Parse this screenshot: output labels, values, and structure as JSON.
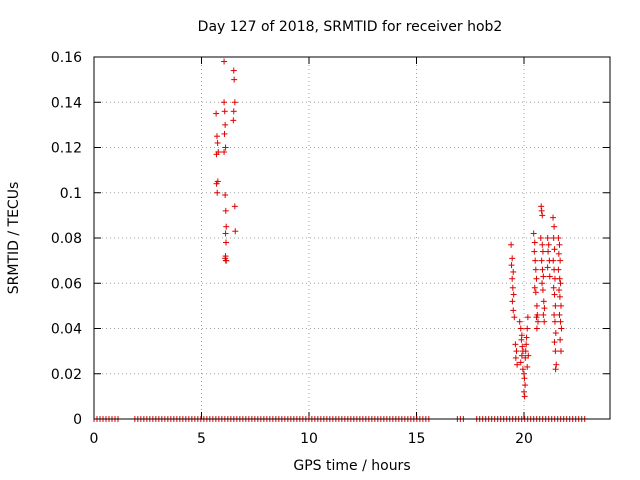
{
  "chart_data": {
    "type": "scatter",
    "title": "Day 127 of 2018, SRMTID for receiver hob2",
    "xlabel": "GPS time / hours",
    "ylabel": "SRMTID / TECUs",
    "xlim": [
      0,
      24
    ],
    "ylim": [
      0,
      0.16
    ],
    "xticks": [
      0,
      5,
      10,
      15,
      20
    ],
    "xtick_labels": [
      "0",
      "5",
      "10",
      "15",
      "20"
    ],
    "yticks": [
      0,
      0.02,
      0.04,
      0.06,
      0.08,
      0.1,
      0.12,
      0.14,
      0.16
    ],
    "ytick_labels": [
      "0",
      "0.02",
      "0.04",
      "0.06",
      "0.08",
      "0.1",
      "0.12",
      "0.14",
      "0.16"
    ],
    "grid": true,
    "marker": "plus",
    "color": "#dd0000",
    "zero_band_segments": [
      [
        0,
        1.2
      ],
      [
        1.9,
        15.7
      ],
      [
        16.9,
        17.2
      ],
      [
        17.8,
        22.9
      ]
    ],
    "series": [
      {
        "name": "SRMTID",
        "points": [
          [
            5.7,
            0.117
          ],
          [
            5.72,
            0.125
          ],
          [
            5.75,
            0.122
          ],
          [
            5.78,
            0.118
          ],
          [
            5.7,
            0.104
          ],
          [
            5.73,
            0.1
          ],
          [
            5.76,
            0.105
          ],
          [
            5.68,
            0.135
          ],
          [
            6.05,
            0.158
          ],
          [
            6.05,
            0.14
          ],
          [
            6.08,
            0.136
          ],
          [
            6.1,
            0.13
          ],
          [
            6.07,
            0.126
          ],
          [
            6.12,
            0.12
          ],
          [
            6.05,
            0.118
          ],
          [
            6.1,
            0.099
          ],
          [
            6.13,
            0.092
          ],
          [
            6.15,
            0.085
          ],
          [
            6.12,
            0.082
          ],
          [
            6.14,
            0.078
          ],
          [
            6.1,
            0.071
          ],
          [
            6.13,
            0.07
          ],
          [
            6.15,
            0.07
          ],
          [
            6.12,
            0.072
          ],
          [
            6.5,
            0.154
          ],
          [
            6.52,
            0.15
          ],
          [
            6.55,
            0.14
          ],
          [
            6.5,
            0.136
          ],
          [
            6.48,
            0.132
          ],
          [
            6.55,
            0.094
          ],
          [
            6.57,
            0.083
          ],
          [
            19.4,
            0.077
          ],
          [
            19.45,
            0.071
          ],
          [
            19.42,
            0.068
          ],
          [
            19.5,
            0.065
          ],
          [
            19.45,
            0.062
          ],
          [
            19.48,
            0.058
          ],
          [
            19.52,
            0.055
          ],
          [
            19.46,
            0.052
          ],
          [
            19.5,
            0.048
          ],
          [
            19.55,
            0.045
          ],
          [
            19.6,
            0.033
          ],
          [
            19.65,
            0.03
          ],
          [
            19.62,
            0.027
          ],
          [
            19.68,
            0.024
          ],
          [
            19.8,
            0.043
          ],
          [
            19.85,
            0.04
          ],
          [
            19.9,
            0.037
          ],
          [
            19.88,
            0.035
          ],
          [
            19.92,
            0.032
          ],
          [
            19.95,
            0.03
          ],
          [
            19.9,
            0.028
          ],
          [
            19.85,
            0.025
          ],
          [
            19.95,
            0.022
          ],
          [
            20.0,
            0.02
          ],
          [
            20.02,
            0.018
          ],
          [
            20.05,
            0.015
          ],
          [
            20.0,
            0.012
          ],
          [
            20.03,
            0.01
          ],
          [
            20.06,
            0.027
          ],
          [
            20.08,
            0.03
          ],
          [
            20.1,
            0.033
          ],
          [
            20.12,
            0.036
          ],
          [
            20.15,
            0.04
          ],
          [
            20.18,
            0.045
          ],
          [
            20.2,
            0.028
          ],
          [
            20.15,
            0.023
          ],
          [
            20.45,
            0.082
          ],
          [
            20.5,
            0.078
          ],
          [
            20.48,
            0.074
          ],
          [
            20.52,
            0.07
          ],
          [
            20.55,
            0.066
          ],
          [
            20.58,
            0.062
          ],
          [
            20.5,
            0.058
          ],
          [
            20.55,
            0.056
          ],
          [
            20.6,
            0.05
          ],
          [
            20.62,
            0.046
          ],
          [
            20.65,
            0.043
          ],
          [
            20.6,
            0.04
          ],
          [
            20.58,
            0.045
          ],
          [
            20.8,
            0.094
          ],
          [
            20.82,
            0.092
          ],
          [
            20.85,
            0.09
          ],
          [
            20.78,
            0.08
          ],
          [
            20.85,
            0.077
          ],
          [
            20.88,
            0.074
          ],
          [
            20.82,
            0.07
          ],
          [
            20.86,
            0.066
          ],
          [
            20.9,
            0.063
          ],
          [
            20.84,
            0.06
          ],
          [
            20.88,
            0.057
          ],
          [
            20.92,
            0.052
          ],
          [
            20.95,
            0.049
          ],
          [
            20.9,
            0.046
          ],
          [
            20.94,
            0.043
          ],
          [
            21.1,
            0.08
          ],
          [
            21.15,
            0.077
          ],
          [
            21.12,
            0.074
          ],
          [
            21.18,
            0.07
          ],
          [
            21.1,
            0.067
          ],
          [
            21.2,
            0.063
          ],
          [
            21.35,
            0.089
          ],
          [
            21.4,
            0.085
          ],
          [
            21.38,
            0.08
          ],
          [
            21.42,
            0.075
          ],
          [
            21.36,
            0.07
          ],
          [
            21.4,
            0.066
          ],
          [
            21.44,
            0.062
          ],
          [
            21.38,
            0.058
          ],
          [
            21.42,
            0.055
          ],
          [
            21.46,
            0.05
          ],
          [
            21.4,
            0.046
          ],
          [
            21.44,
            0.043
          ],
          [
            21.48,
            0.038
          ],
          [
            21.42,
            0.034
          ],
          [
            21.46,
            0.03
          ],
          [
            21.5,
            0.024
          ],
          [
            21.47,
            0.022
          ],
          [
            21.6,
            0.08
          ],
          [
            21.65,
            0.077
          ],
          [
            21.62,
            0.073
          ],
          [
            21.68,
            0.07
          ],
          [
            21.6,
            0.066
          ],
          [
            21.66,
            0.062
          ],
          [
            21.7,
            0.06
          ],
          [
            21.63,
            0.057
          ],
          [
            21.67,
            0.054
          ],
          [
            21.72,
            0.05
          ],
          [
            21.65,
            0.046
          ],
          [
            21.7,
            0.043
          ],
          [
            21.74,
            0.04
          ],
          [
            21.68,
            0.035
          ],
          [
            21.72,
            0.03
          ]
        ]
      }
    ]
  }
}
